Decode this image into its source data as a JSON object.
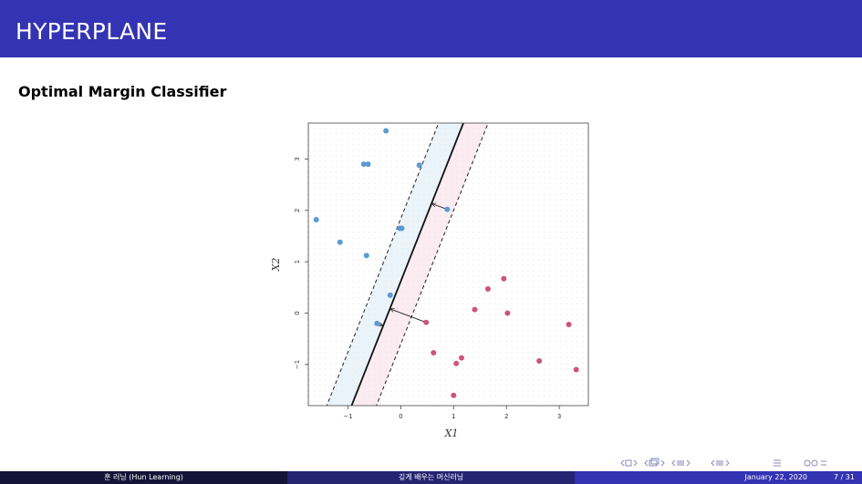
{
  "header": {
    "title": "HYPERPLANE"
  },
  "slide": {
    "subtitle": "Optimal Margin Classifier"
  },
  "chart_data": {
    "type": "scatter",
    "title": "",
    "xlabel": "X1",
    "ylabel": "X2",
    "xlim": [
      -1.75,
      3.55
    ],
    "ylim": [
      -1.8,
      3.7
    ],
    "xticks": [
      -1,
      0,
      1,
      2,
      3
    ],
    "yticks": [
      -1,
      0,
      1,
      2,
      3
    ],
    "grid": "dotted background",
    "series": [
      {
        "color": "#5b9bd0",
        "points": [
          [
            -0.28,
            3.55
          ],
          [
            -0.7,
            2.9
          ],
          [
            -0.62,
            2.9
          ],
          [
            0.35,
            2.88
          ],
          [
            -1.6,
            1.82
          ],
          [
            -1.15,
            1.38
          ],
          [
            -0.02,
            1.65
          ],
          [
            0.02,
            1.65
          ],
          [
            -0.65,
            1.12
          ],
          [
            0.88,
            2.02
          ],
          [
            -0.2,
            0.35
          ],
          [
            -0.45,
            -0.2
          ]
        ]
      },
      {
        "color": "#cc5577",
        "points": [
          [
            1.95,
            0.67
          ],
          [
            1.65,
            0.47
          ],
          [
            1.4,
            0.07
          ],
          [
            2.02,
            0.0
          ],
          [
            3.18,
            -0.22
          ],
          [
            0.48,
            -0.18
          ],
          [
            0.62,
            -0.77
          ],
          [
            1.15,
            -0.87
          ],
          [
            1.05,
            -0.98
          ],
          [
            2.62,
            -0.93
          ],
          [
            3.32,
            -1.1
          ],
          [
            1.0,
            -1.6
          ]
        ]
      }
    ],
    "hyperplane": {
      "slope": 2.6,
      "intercept": 0.62
    },
    "margin_offset": 1.22,
    "support_arrows": [
      [
        0.88,
        2.02
      ],
      [
        0.48,
        -0.18
      ],
      [
        -0.45,
        -0.2
      ]
    ]
  },
  "nav_icons": [
    "frame-prev-icon",
    "frame-next-icon",
    "subsection-prev-icon",
    "subsection-next-icon",
    "section-prev-icon",
    "section-next-icon",
    "align-icon",
    "search-icon"
  ],
  "footer": {
    "author": "훈 러닝 (Hun Learning)",
    "short_title": "깊게 배우는 머신러닝",
    "date": "January 22, 2020",
    "page": "7 / 31"
  }
}
